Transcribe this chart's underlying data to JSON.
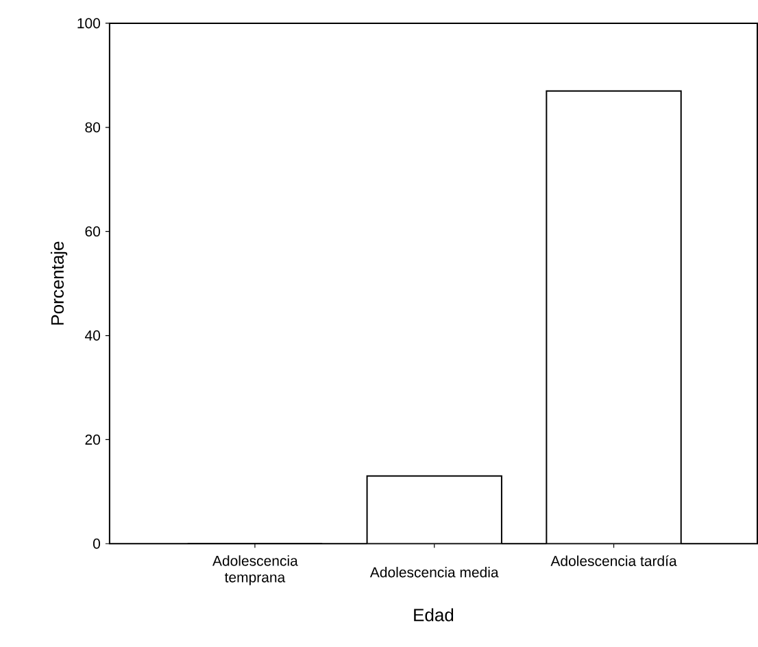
{
  "chart_data": {
    "type": "bar",
    "xlabel": "Edad",
    "ylabel": "Porcentaje",
    "categories": [
      "Adolescencia temprana",
      "Adolescencia media",
      "Adolescencia tardía"
    ],
    "values": [
      0,
      13,
      87
    ],
    "color": "#ffffff",
    "ylim": [
      0,
      100
    ],
    "yticks": [
      0,
      20,
      40,
      60,
      80,
      100
    ]
  }
}
